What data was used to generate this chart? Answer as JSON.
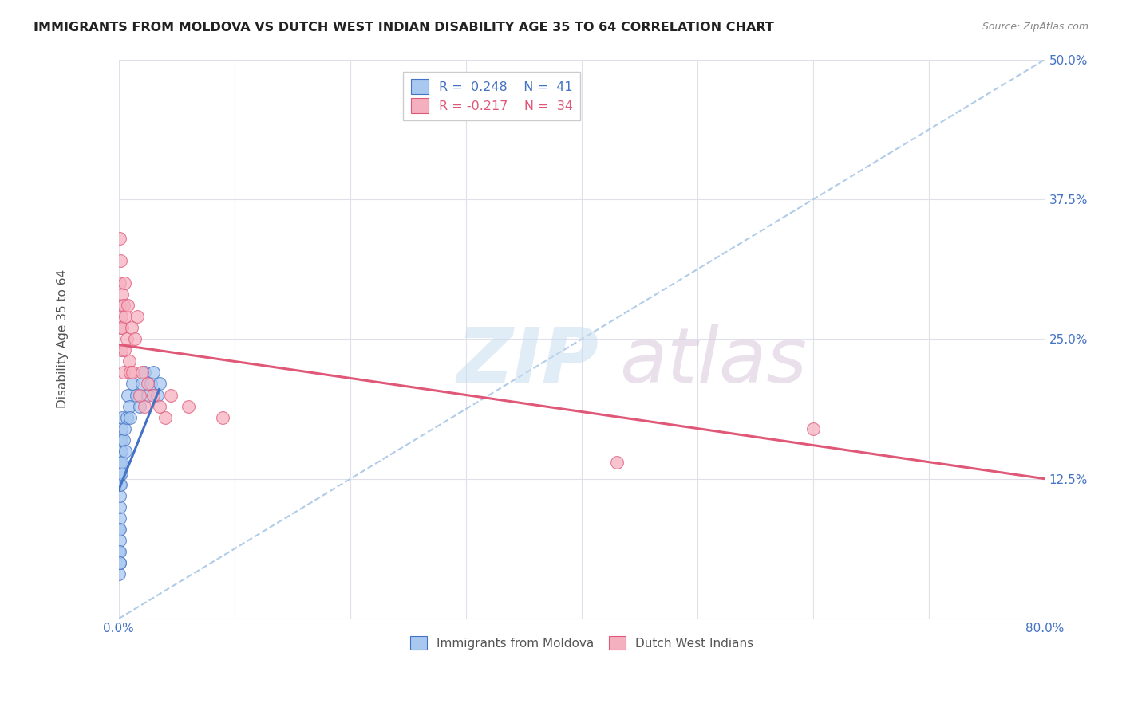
{
  "title": "IMMIGRANTS FROM MOLDOVA VS DUTCH WEST INDIAN DISABILITY AGE 35 TO 64 CORRELATION CHART",
  "source": "Source: ZipAtlas.com",
  "ylabel": "Disability Age 35 to 64",
  "xlim": [
    0,
    0.8
  ],
  "ylim": [
    0,
    0.5
  ],
  "xticks": [
    0.0,
    0.1,
    0.2,
    0.3,
    0.4,
    0.5,
    0.6,
    0.7,
    0.8
  ],
  "yticks": [
    0.0,
    0.125,
    0.25,
    0.375,
    0.5
  ],
  "ytick_labels": [
    "",
    "12.5%",
    "25.0%",
    "37.5%",
    "50.0%"
  ],
  "xtick_labels": [
    "0.0%",
    "",
    "",
    "",
    "",
    "",
    "",
    "",
    "80.0%"
  ],
  "moldova_color": "#a8c8f0",
  "dwi_color": "#f5b0c0",
  "moldova_line_color": "#4472c4",
  "dwi_line_color": "#e05878",
  "ref_line_color": "#b0cce8",
  "background_color": "#ffffff",
  "grid_color": "#e0e0ea",
  "moldova_x": [
    0.0005,
    0.0005,
    0.0005,
    0.0006,
    0.0006,
    0.0007,
    0.0008,
    0.0008,
    0.0009,
    0.001,
    0.001,
    0.001,
    0.001,
    0.0012,
    0.0013,
    0.0014,
    0.0015,
    0.0015,
    0.002,
    0.002,
    0.002,
    0.0025,
    0.003,
    0.003,
    0.004,
    0.005,
    0.006,
    0.007,
    0.008,
    0.009,
    0.01,
    0.012,
    0.015,
    0.018,
    0.02,
    0.022,
    0.025,
    0.028,
    0.03,
    0.033,
    0.035
  ],
  "moldova_y": [
    0.04,
    0.06,
    0.08,
    0.05,
    0.09,
    0.07,
    0.06,
    0.08,
    0.05,
    0.1,
    0.12,
    0.14,
    0.16,
    0.11,
    0.13,
    0.14,
    0.12,
    0.15,
    0.13,
    0.15,
    0.17,
    0.16,
    0.14,
    0.18,
    0.16,
    0.17,
    0.15,
    0.18,
    0.2,
    0.19,
    0.18,
    0.21,
    0.2,
    0.19,
    0.21,
    0.22,
    0.2,
    0.21,
    0.22,
    0.2,
    0.21
  ],
  "moldova_trend_x": [
    0.0,
    0.035
  ],
  "moldova_trend_y": [
    0.115,
    0.205
  ],
  "dwi_x": [
    0.0006,
    0.001,
    0.001,
    0.0015,
    0.0015,
    0.002,
    0.002,
    0.003,
    0.003,
    0.004,
    0.004,
    0.005,
    0.005,
    0.006,
    0.007,
    0.008,
    0.009,
    0.01,
    0.011,
    0.012,
    0.014,
    0.016,
    0.018,
    0.02,
    0.022,
    0.025,
    0.03,
    0.035,
    0.04,
    0.045,
    0.06,
    0.09,
    0.43,
    0.6
  ],
  "dwi_y": [
    0.34,
    0.28,
    0.3,
    0.26,
    0.32,
    0.24,
    0.27,
    0.29,
    0.26,
    0.22,
    0.28,
    0.24,
    0.3,
    0.27,
    0.25,
    0.28,
    0.23,
    0.22,
    0.26,
    0.22,
    0.25,
    0.27,
    0.2,
    0.22,
    0.19,
    0.21,
    0.2,
    0.19,
    0.18,
    0.2,
    0.19,
    0.18,
    0.14,
    0.17
  ],
  "dwi_trend_x": [
    0.0,
    0.8
  ],
  "dwi_trend_y": [
    0.245,
    0.125
  ]
}
